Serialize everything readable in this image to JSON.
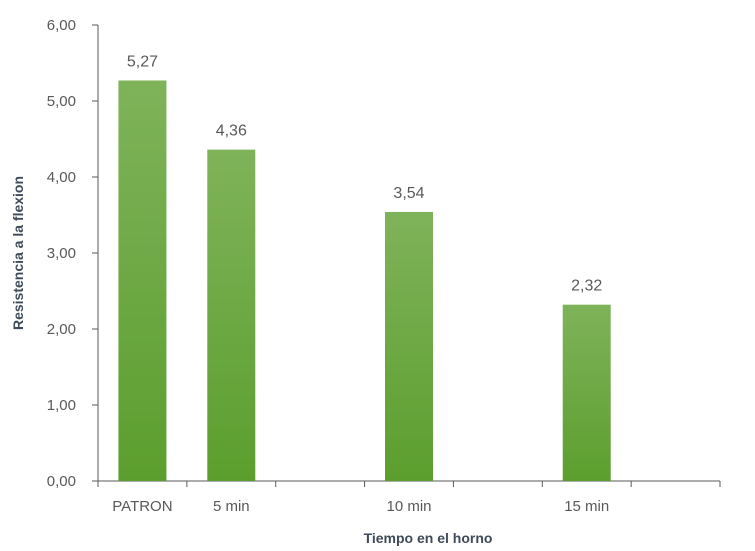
{
  "chart_data": {
    "type": "bar",
    "categories": [
      "PATRON",
      "5 min",
      "",
      "10 min",
      "",
      "15 min",
      ""
    ],
    "values": [
      5.27,
      4.36,
      null,
      3.54,
      null,
      2.32,
      null
    ],
    "value_labels": [
      "5,27",
      "4,36",
      "",
      "3,54",
      "",
      "2,32",
      ""
    ],
    "xlabel": "Tiempo en el horno",
    "ylabel": "Resistencia a la flexion",
    "ylim": [
      0,
      6
    ],
    "yticks": [
      0,
      1,
      2,
      3,
      4,
      5,
      6
    ],
    "ytick_labels": [
      "0,00",
      "1,00",
      "2,00",
      "3,00",
      "4,00",
      "5,00",
      "6,00"
    ],
    "grid": false,
    "legend": "none",
    "colors": {
      "bar_top": "#7fb35a",
      "bar_bottom": "#5c9e2e",
      "axis": "#595959",
      "tick_text": "#595959",
      "title_text": "#3f4a5a"
    }
  }
}
